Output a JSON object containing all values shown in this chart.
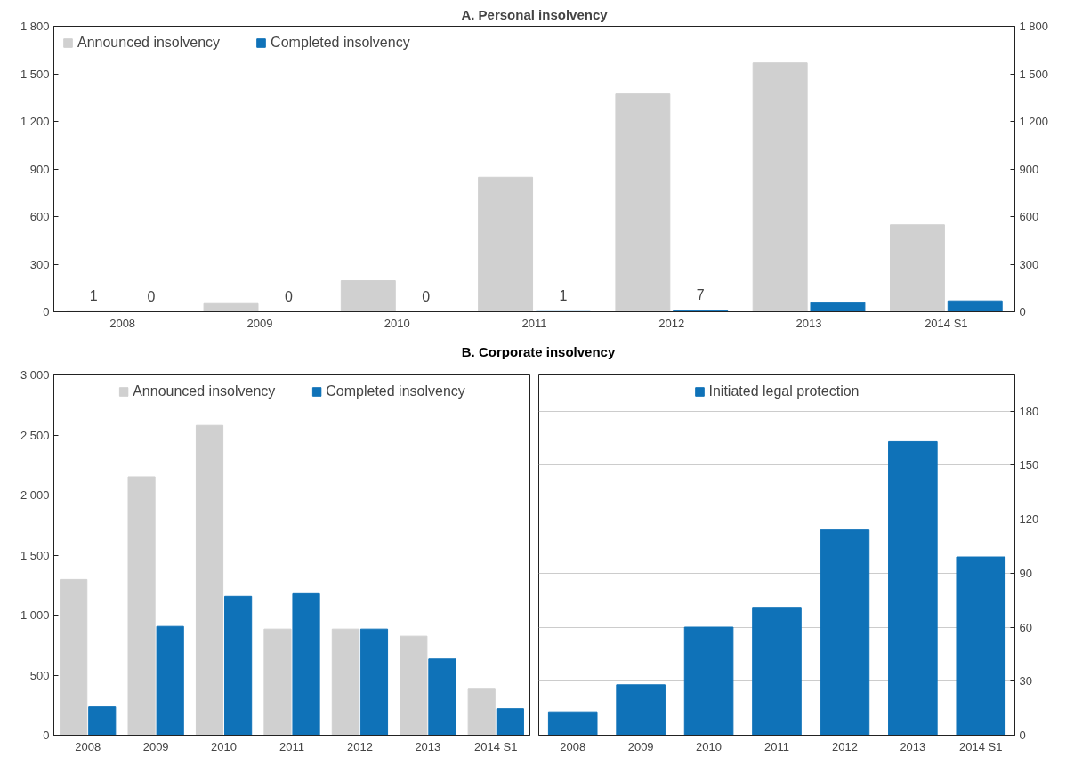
{
  "chart_data": [
    {
      "type": "bar",
      "title": "A. Personal insolvency",
      "categories": [
        "2008",
        "2009",
        "2010",
        "2011",
        "2012",
        "2013",
        "2014 S1"
      ],
      "series": [
        {
          "name": "Announced insolvency",
          "color": "#d0d0d0",
          "values": [
            1,
            52,
            196,
            848,
            1373,
            1569,
            548
          ],
          "value_labels": [
            "1",
            null,
            null,
            null,
            null,
            null,
            null
          ]
        },
        {
          "name": "Completed insolvency",
          "color": "#0f72b8",
          "values": [
            0,
            0,
            0,
            1,
            7,
            58,
            69
          ],
          "value_labels": [
            "0",
            "0",
            "0",
            "1",
            "7",
            null,
            null
          ]
        }
      ],
      "ylim": [
        0,
        1800
      ],
      "yticks": [
        0,
        300,
        600,
        900,
        {
          "value": 1200,
          "label": "1 200"
        },
        {
          "value": 1500,
          "label": "1 500"
        },
        {
          "value": 1800,
          "label": "1 800"
        }
      ],
      "y2lim": [
        0,
        1800
      ],
      "y2ticks": [
        0,
        300,
        600,
        900,
        {
          "value": 1200,
          "label": "1 200"
        },
        {
          "value": 1500,
          "label": "1 500"
        },
        {
          "value": 1800,
          "label": "1 800"
        }
      ],
      "grid": false,
      "legend": "top left"
    },
    {
      "type": "bar",
      "title": "B. Corporate insolvency",
      "categories": [
        "2008",
        "2009",
        "2010",
        "2011",
        "2012",
        "2013",
        "2014 S1"
      ],
      "series": [
        {
          "name": "Announced insolvency",
          "color": "#d0d0d0",
          "values": [
            1297,
            2152,
            2580,
            884,
            884,
            825,
            383
          ]
        },
        {
          "name": "Completed insolvency",
          "color": "#0f72b8",
          "values": [
            236,
            906,
            1157,
            1179,
            884,
            635,
            221
          ]
        }
      ],
      "ylim": [
        0,
        3000
      ],
      "yticks": [
        0,
        500,
        {
          "value": 1000,
          "label": "1 000"
        },
        {
          "value": 1500,
          "label": "1 500"
        },
        {
          "value": 2000,
          "label": "2 000"
        },
        {
          "value": 2500,
          "label": "2 500"
        },
        {
          "value": 3000,
          "label": "3 000"
        }
      ],
      "grid": false,
      "legend": "top"
    },
    {
      "type": "bar",
      "categories": [
        "2008",
        "2009",
        "2010",
        "2011",
        "2012",
        "2013",
        "2014 S1"
      ],
      "series": [
        {
          "name": "Initiated legal protection",
          "color": "#0f72b8",
          "axis": "y2",
          "values": [
            13,
            28,
            60,
            71,
            114,
            163,
            99
          ]
        }
      ],
      "y2lim": [
        0,
        200
      ],
      "y2ticks": [
        0,
        30,
        60,
        90,
        120,
        150,
        180
      ],
      "grid": "y",
      "legend": "top"
    }
  ]
}
